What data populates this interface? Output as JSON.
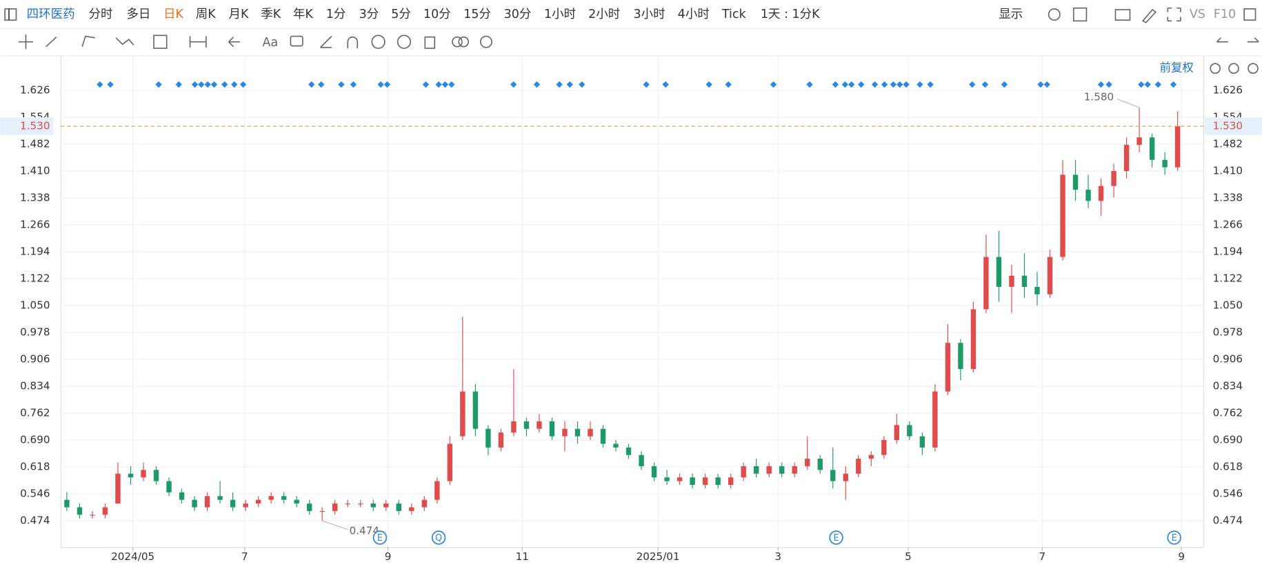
{
  "toolbar": {
    "symbol": "四环医药",
    "periods": [
      "分时",
      "多日",
      "日K",
      "周K",
      "月K",
      "季K",
      "年K",
      "1分",
      "3分",
      "5分",
      "10分",
      "15分",
      "30分",
      "1小时",
      "2小时",
      "3小时",
      "4小时",
      "Tick"
    ],
    "period_setting": "1天 : 1分K",
    "display": "显示",
    "vs": "VS",
    "f10": "F10",
    "text_tool": "Aa"
  },
  "chart_data": {
    "type": "candlestick",
    "adjust_label": "前复权",
    "up_color": "#e04b4b",
    "down_color": "#1d9a68",
    "xlim": [
      0,
      89.5
    ],
    "xticks": [
      {
        "value": 5.67,
        "label": "2024/05"
      },
      {
        "value": 14.43,
        "label": "7"
      },
      {
        "value": 25.65,
        "label": "9"
      },
      {
        "value": 36.17,
        "label": "11"
      },
      {
        "value": 46.8,
        "label": "2025/01"
      },
      {
        "value": 56.2,
        "label": "3"
      },
      {
        "value": 66.4,
        "label": "5"
      },
      {
        "value": 76.9,
        "label": "7"
      },
      {
        "value": 87.8,
        "label": "9"
      }
    ],
    "ylim": [
      0.403,
      1.717
    ],
    "yticks": [
      0.474,
      0.546,
      0.618,
      {
        "value": 0.69,
        "label": "0.690"
      },
      0.762,
      0.834,
      0.906,
      0.978,
      {
        "value": 1.05,
        "label": "1.050"
      },
      1.122,
      1.194,
      1.266,
      1.338,
      {
        "value": 1.41,
        "label": "1.410"
      },
      1.482,
      1.554,
      1.626
    ],
    "grid": true,
    "last_price": {
      "value": 1.53,
      "label": "1.530"
    },
    "max_label": {
      "value": 1.58,
      "label": "1.580"
    },
    "min_label": 0.474,
    "event_markers": [
      "E",
      "Q",
      "E",
      "E"
    ],
    "ohlc": [
      [
        0.53,
        0.55,
        0.5,
        0.51
      ],
      [
        0.51,
        0.52,
        0.48,
        0.49
      ],
      [
        0.49,
        0.5,
        0.48,
        0.49
      ],
      [
        0.49,
        0.52,
        0.48,
        0.51
      ],
      [
        0.52,
        0.63,
        0.52,
        0.6
      ],
      [
        0.6,
        0.62,
        0.57,
        0.59
      ],
      [
        0.59,
        0.63,
        0.58,
        0.61
      ],
      [
        0.61,
        0.62,
        0.57,
        0.58
      ],
      [
        0.58,
        0.59,
        0.54,
        0.55
      ],
      [
        0.55,
        0.56,
        0.52,
        0.53
      ],
      [
        0.53,
        0.54,
        0.5,
        0.51
      ],
      [
        0.51,
        0.55,
        0.5,
        0.54
      ],
      [
        0.54,
        0.58,
        0.52,
        0.53
      ],
      [
        0.53,
        0.55,
        0.5,
        0.51
      ],
      [
        0.51,
        0.53,
        0.5,
        0.52
      ],
      [
        0.52,
        0.54,
        0.51,
        0.53
      ],
      [
        0.53,
        0.55,
        0.52,
        0.54
      ],
      [
        0.54,
        0.55,
        0.52,
        0.53
      ],
      [
        0.53,
        0.54,
        0.51,
        0.52
      ],
      [
        0.52,
        0.53,
        0.49,
        0.5
      ],
      [
        0.5,
        0.51,
        0.474,
        0.5
      ],
      [
        0.5,
        0.53,
        0.49,
        0.52
      ],
      [
        0.52,
        0.53,
        0.51,
        0.52
      ],
      [
        0.52,
        0.53,
        0.51,
        0.52
      ],
      [
        0.52,
        0.53,
        0.5,
        0.51
      ],
      [
        0.51,
        0.53,
        0.5,
        0.52
      ],
      [
        0.52,
        0.53,
        0.49,
        0.5
      ],
      [
        0.5,
        0.52,
        0.49,
        0.51
      ],
      [
        0.51,
        0.54,
        0.5,
        0.53
      ],
      [
        0.53,
        0.59,
        0.52,
        0.58
      ],
      [
        0.58,
        0.7,
        0.57,
        0.68
      ],
      [
        0.7,
        1.02,
        0.69,
        0.82
      ],
      [
        0.82,
        0.84,
        0.7,
        0.72
      ],
      [
        0.72,
        0.73,
        0.65,
        0.67
      ],
      [
        0.67,
        0.72,
        0.66,
        0.71
      ],
      [
        0.71,
        0.88,
        0.7,
        0.74
      ],
      [
        0.74,
        0.75,
        0.7,
        0.72
      ],
      [
        0.72,
        0.76,
        0.71,
        0.74
      ],
      [
        0.74,
        0.75,
        0.69,
        0.7
      ],
      [
        0.7,
        0.74,
        0.66,
        0.72
      ],
      [
        0.72,
        0.74,
        0.68,
        0.7
      ],
      [
        0.7,
        0.74,
        0.69,
        0.72
      ],
      [
        0.72,
        0.73,
        0.67,
        0.68
      ],
      [
        0.68,
        0.69,
        0.66,
        0.67
      ],
      [
        0.67,
        0.68,
        0.64,
        0.65
      ],
      [
        0.65,
        0.66,
        0.61,
        0.62
      ],
      [
        0.62,
        0.63,
        0.58,
        0.59
      ],
      [
        0.59,
        0.61,
        0.57,
        0.58
      ],
      [
        0.58,
        0.6,
        0.57,
        0.59
      ],
      [
        0.59,
        0.6,
        0.56,
        0.57
      ],
      [
        0.57,
        0.6,
        0.56,
        0.59
      ],
      [
        0.59,
        0.6,
        0.56,
        0.57
      ],
      [
        0.57,
        0.6,
        0.56,
        0.59
      ],
      [
        0.59,
        0.63,
        0.58,
        0.62
      ],
      [
        0.62,
        0.64,
        0.59,
        0.6
      ],
      [
        0.6,
        0.63,
        0.59,
        0.62
      ],
      [
        0.62,
        0.63,
        0.59,
        0.6
      ],
      [
        0.6,
        0.63,
        0.59,
        0.62
      ],
      [
        0.62,
        0.7,
        0.61,
        0.64
      ],
      [
        0.64,
        0.65,
        0.6,
        0.61
      ],
      [
        0.61,
        0.67,
        0.56,
        0.58
      ],
      [
        0.58,
        0.62,
        0.53,
        0.6
      ],
      [
        0.6,
        0.65,
        0.59,
        0.64
      ],
      [
        0.64,
        0.66,
        0.62,
        0.65
      ],
      [
        0.65,
        0.7,
        0.64,
        0.69
      ],
      [
        0.69,
        0.76,
        0.68,
        0.73
      ],
      [
        0.73,
        0.74,
        0.69,
        0.7
      ],
      [
        0.7,
        0.71,
        0.65,
        0.67
      ],
      [
        0.67,
        0.84,
        0.66,
        0.82
      ],
      [
        0.82,
        1.0,
        0.81,
        0.95
      ],
      [
        0.95,
        0.96,
        0.85,
        0.88
      ],
      [
        0.88,
        1.06,
        0.87,
        1.04
      ],
      [
        1.04,
        1.24,
        1.03,
        1.18
      ],
      [
        1.18,
        1.25,
        1.06,
        1.1
      ],
      [
        1.1,
        1.16,
        1.03,
        1.13
      ],
      [
        1.13,
        1.19,
        1.07,
        1.1
      ],
      [
        1.1,
        1.14,
        1.05,
        1.08
      ],
      [
        1.08,
        1.2,
        1.07,
        1.18
      ],
      [
        1.18,
        1.44,
        1.17,
        1.4
      ],
      [
        1.4,
        1.44,
        1.33,
        1.36
      ],
      [
        1.36,
        1.4,
        1.31,
        1.33
      ],
      [
        1.33,
        1.39,
        1.29,
        1.37
      ],
      [
        1.37,
        1.43,
        1.34,
        1.41
      ],
      [
        1.41,
        1.5,
        1.39,
        1.48
      ],
      [
        1.48,
        1.58,
        1.46,
        1.5
      ],
      [
        1.5,
        1.51,
        1.42,
        1.44
      ],
      [
        1.44,
        1.46,
        1.4,
        1.42
      ],
      [
        1.42,
        1.57,
        1.41,
        1.53
      ]
    ]
  }
}
